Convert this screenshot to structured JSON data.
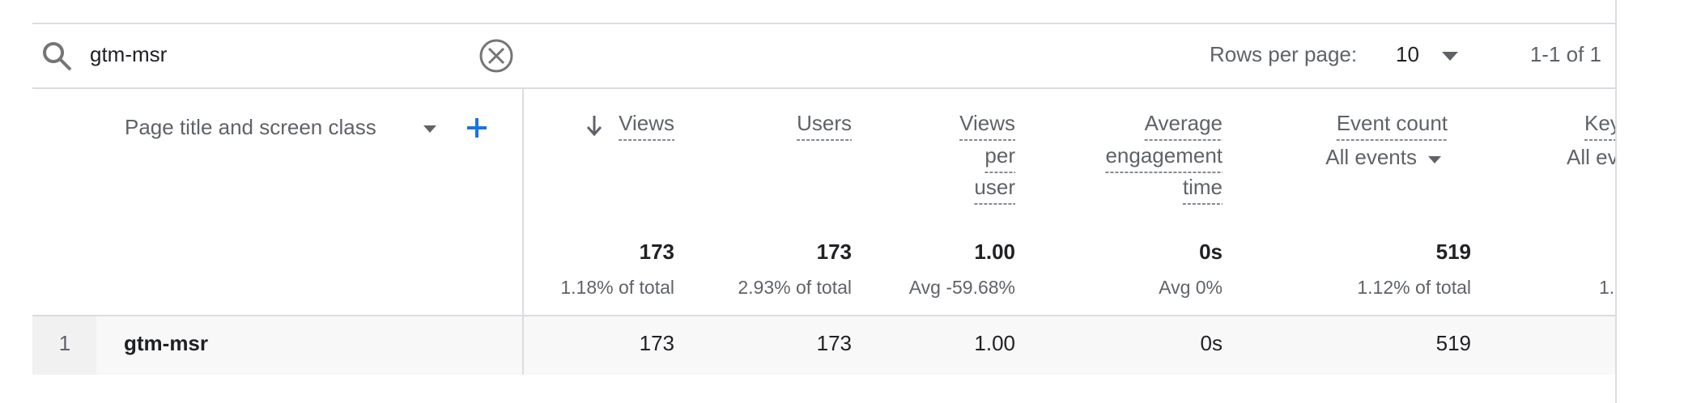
{
  "search": {
    "query": "gtm-msr"
  },
  "pagination": {
    "rows_per_page_label": "Rows per page:",
    "rows_per_page": "10",
    "range": "1-1 of 1"
  },
  "table": {
    "dimension": "Page title and screen class",
    "columns": [
      {
        "header": [
          "Views"
        ],
        "total": "173",
        "total_note": "1.18% of total"
      },
      {
        "header": [
          "Users"
        ],
        "total": "173",
        "total_note": "2.93% of total"
      },
      {
        "header": [
          "Views",
          "per",
          "user"
        ],
        "total": "1.00",
        "total_note": "Avg -59.68%"
      },
      {
        "header": [
          "Average",
          "engagement",
          "time"
        ],
        "total": "0s",
        "total_note": "Avg 0%"
      },
      {
        "header": [
          "Event count"
        ],
        "filter": "All events",
        "total": "519",
        "total_note": "1.12% of total"
      },
      {
        "header": [
          "Key"
        ],
        "filter": "All ev",
        "total_note": "1."
      }
    ],
    "rows": [
      {
        "index": "1",
        "title": "gtm-msr",
        "cells": [
          "173",
          "173",
          "1.00",
          "0s",
          "519"
        ]
      }
    ]
  }
}
